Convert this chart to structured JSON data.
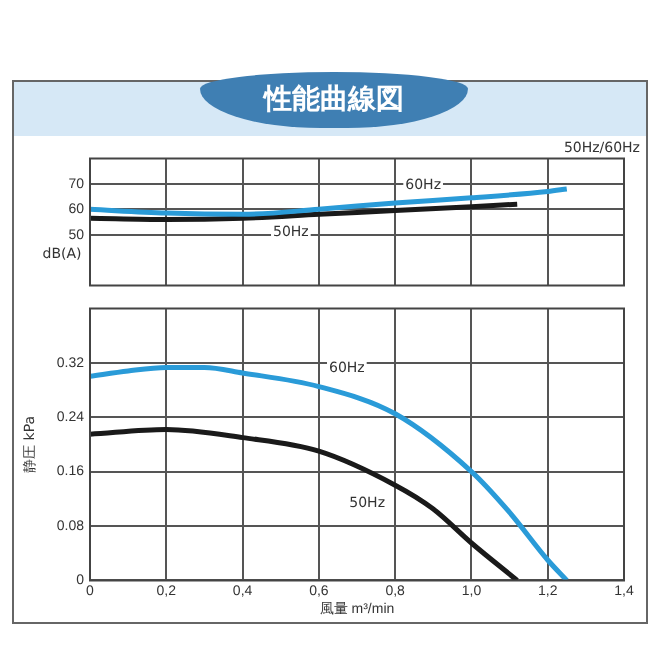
{
  "chart_data": [
    {
      "type": "line",
      "title": "性能曲線図",
      "ylabel": "dB(A)",
      "xlim": [
        0,
        1.4
      ],
      "ylim": [
        30,
        80
      ],
      "yticks": [
        50,
        60,
        70
      ],
      "tick_labels": "y",
      "grid": true,
      "line_style": "solid",
      "annotations": [
        "50Hz/60Hz"
      ],
      "series": [
        {
          "name": "60Hz",
          "color": "#2a9bd8",
          "x": [
            0,
            0.2,
            0.4,
            0.6,
            0.8,
            1.0,
            1.2,
            1.25
          ],
          "values": [
            60,
            58.5,
            58,
            60,
            62.5,
            64.5,
            67,
            68
          ]
        },
        {
          "name": "50Hz",
          "color": "#1a1a1a",
          "x": [
            0,
            0.2,
            0.4,
            0.6,
            0.8,
            1.0,
            1.12
          ],
          "values": [
            56.5,
            56,
            56.5,
            58,
            59.5,
            61,
            62
          ]
        }
      ]
    },
    {
      "type": "line",
      "xlabel": "風量 m³/min",
      "ylabel": "静圧 kPa",
      "xlim": [
        0,
        1.4
      ],
      "ylim": [
        0,
        0.4
      ],
      "grid": true,
      "line_style": "solid",
      "xticks": [
        {
          "value": 0,
          "label": "0"
        },
        {
          "value": 0.2,
          "label": "0,2"
        },
        {
          "value": 0.4,
          "label": "0,4"
        },
        {
          "value": 0.6,
          "label": "0,6"
        },
        {
          "value": 0.8,
          "label": "0,8"
        },
        {
          "value": 1.0,
          "label": "1,0"
        },
        {
          "value": 1.2,
          "label": "1,2"
        },
        {
          "value": 1.4,
          "label": "1,4"
        }
      ],
      "yticks": [
        0,
        0.08,
        0.16,
        0.24,
        0.32
      ],
      "series": [
        {
          "name": "60Hz",
          "color": "#2a9bd8",
          "x": [
            0,
            0.1,
            0.2,
            0.3,
            0.4,
            0.6,
            0.8,
            1.0,
            1.1,
            1.2,
            1.25
          ],
          "values": [
            0.3,
            0.308,
            0.313,
            0.313,
            0.305,
            0.285,
            0.245,
            0.16,
            0.1,
            0.03,
            0
          ]
        },
        {
          "name": "50Hz",
          "color": "#1a1a1a",
          "x": [
            0,
            0.2,
            0.4,
            0.6,
            0.8,
            0.9,
            1.0,
            1.12
          ],
          "values": [
            0.215,
            0.222,
            0.21,
            0.19,
            0.14,
            0.105,
            0.055,
            0
          ]
        }
      ]
    }
  ]
}
